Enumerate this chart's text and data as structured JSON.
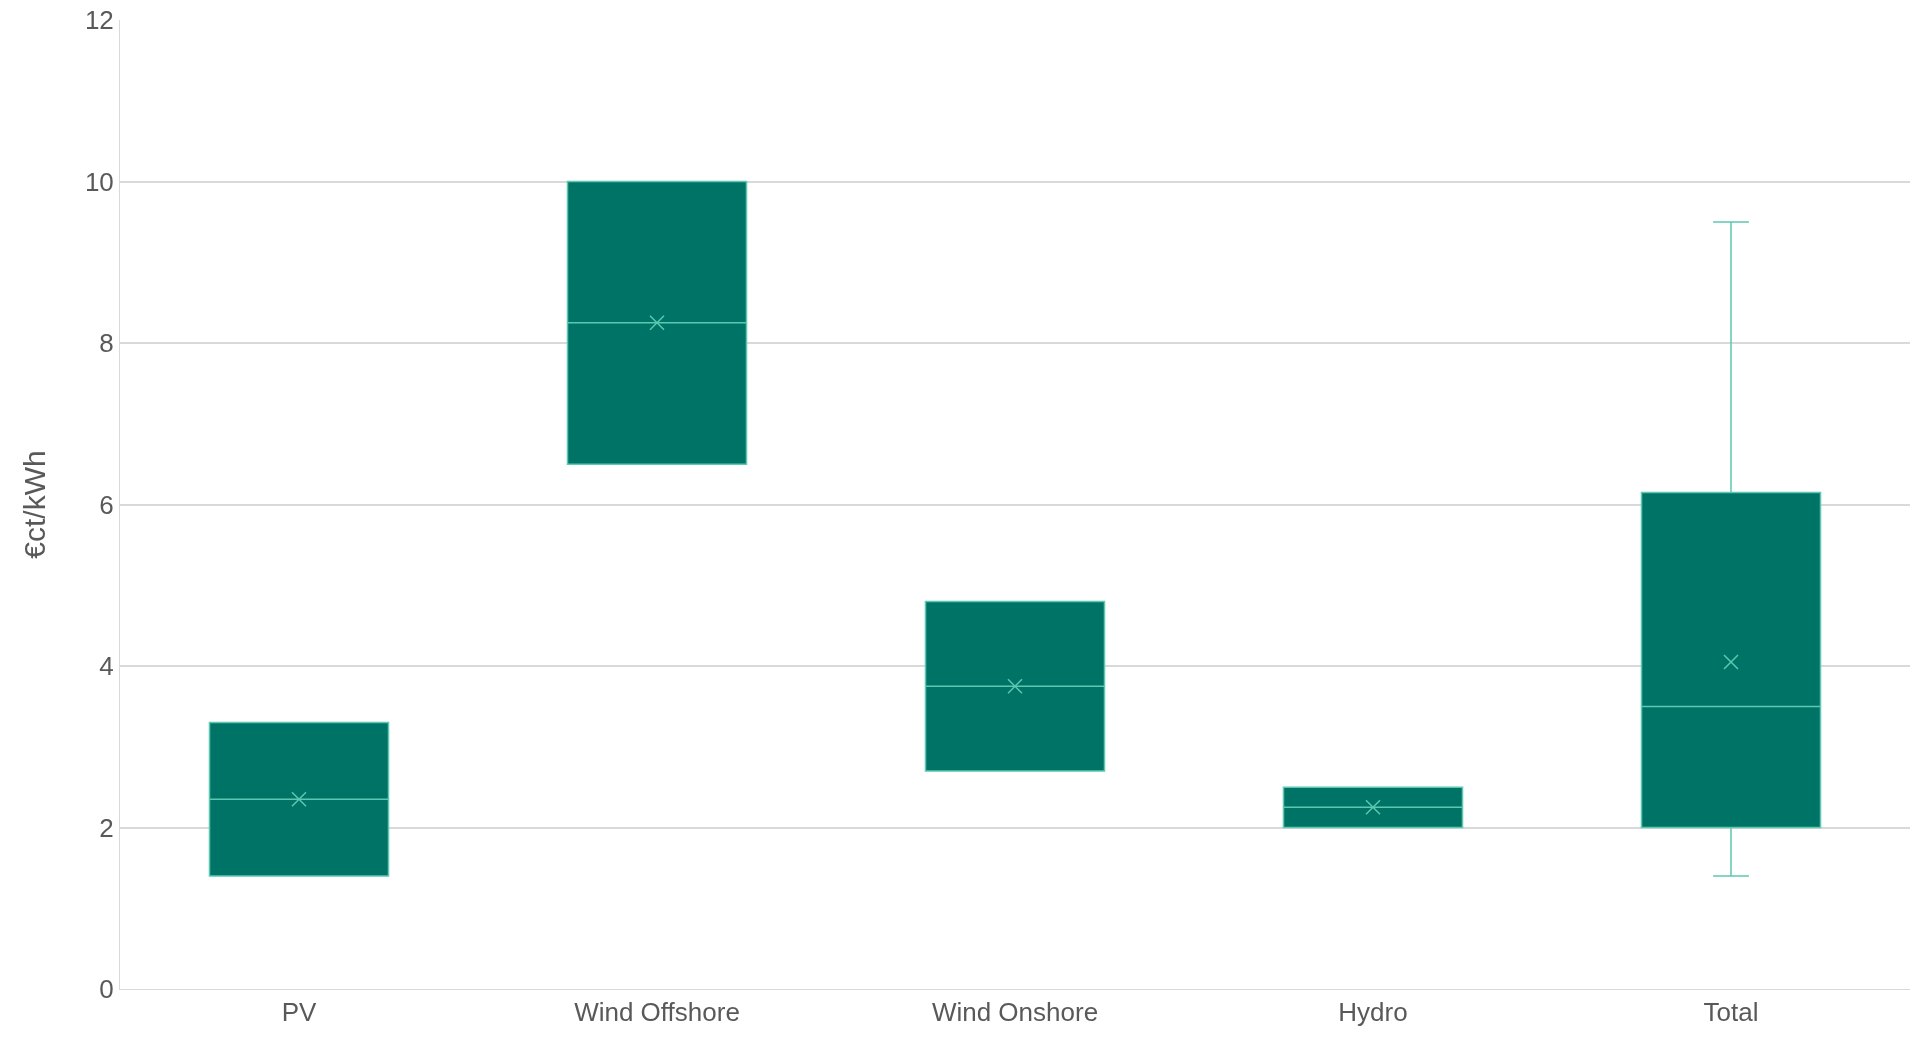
{
  "chart_data": {
    "type": "box",
    "ylabel": "€ct/kWh",
    "categories": [
      "PV",
      "Wind Offshore",
      "Wind Onshore",
      "Hydro",
      "Total"
    ],
    "series": [
      {
        "color": "#007367",
        "boxes": [
          {
            "low": 1.4,
            "q1": 1.4,
            "median": 2.35,
            "q3": 3.3,
            "high": 3.3,
            "mean": 2.35
          },
          {
            "low": 6.5,
            "q1": 6.5,
            "median": 8.25,
            "q3": 10,
            "high": 10,
            "mean": 8.25
          },
          {
            "low": 2.7,
            "q1": 2.7,
            "median": 3.75,
            "q3": 4.8,
            "high": 4.8,
            "mean": 3.75
          },
          {
            "low": 2,
            "q1": 2,
            "median": 2.25,
            "q3": 2.5,
            "high": 2.5,
            "mean": 2.25
          },
          {
            "low": 1.4,
            "q1": 2,
            "median": 3.5,
            "q3": 6.15,
            "high": 9.5,
            "mean": 4.05
          }
        ]
      }
    ],
    "ylim": [
      0,
      12
    ],
    "yticks": [
      0,
      2,
      4,
      6,
      8,
      10,
      12
    ],
    "grid": "y",
    "marker": "cross"
  }
}
